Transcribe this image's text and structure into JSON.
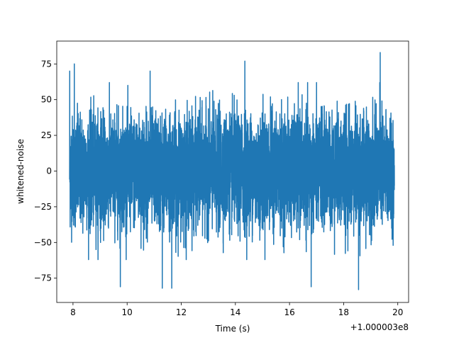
{
  "chart_data": {
    "type": "line",
    "title": "",
    "xlabel": "Time (s)",
    "ylabel": "whitened-noise",
    "x_offset_label": "+1.000003e8",
    "xlim": [
      7.4,
      20.4
    ],
    "ylim": [
      -92,
      91
    ],
    "x_ticks": [
      8,
      10,
      12,
      14,
      16,
      18,
      20
    ],
    "y_ticks": [
      -75,
      -50,
      -25,
      0,
      25,
      50,
      75
    ],
    "x_tick_labels": [
      "8",
      "10",
      "12",
      "14",
      "16",
      "18",
      "20"
    ],
    "y_tick_labels": [
      "−75",
      "−50",
      "−25",
      "0",
      "25",
      "50",
      "75"
    ],
    "grid": false,
    "legend": "none",
    "series": [
      {
        "color": "#1f77b4",
        "x_range": [
          7.875,
          19.875
        ],
        "amplitude_envelope": [
          -83,
          83
        ],
        "peaks": [
          {
            "x": 7.88,
            "y": 70
          },
          {
            "x": 8.05,
            "y": 75
          },
          {
            "x": 10.85,
            "y": 70
          },
          {
            "x": 14.35,
            "y": 77
          },
          {
            "x": 19.35,
            "y": 83
          },
          {
            "x": 9.75,
            "y": -81
          },
          {
            "x": 11.3,
            "y": -82
          },
          {
            "x": 11.65,
            "y": -82
          },
          {
            "x": 16.8,
            "y": -81
          },
          {
            "x": 18.55,
            "y": -83
          }
        ]
      }
    ]
  }
}
